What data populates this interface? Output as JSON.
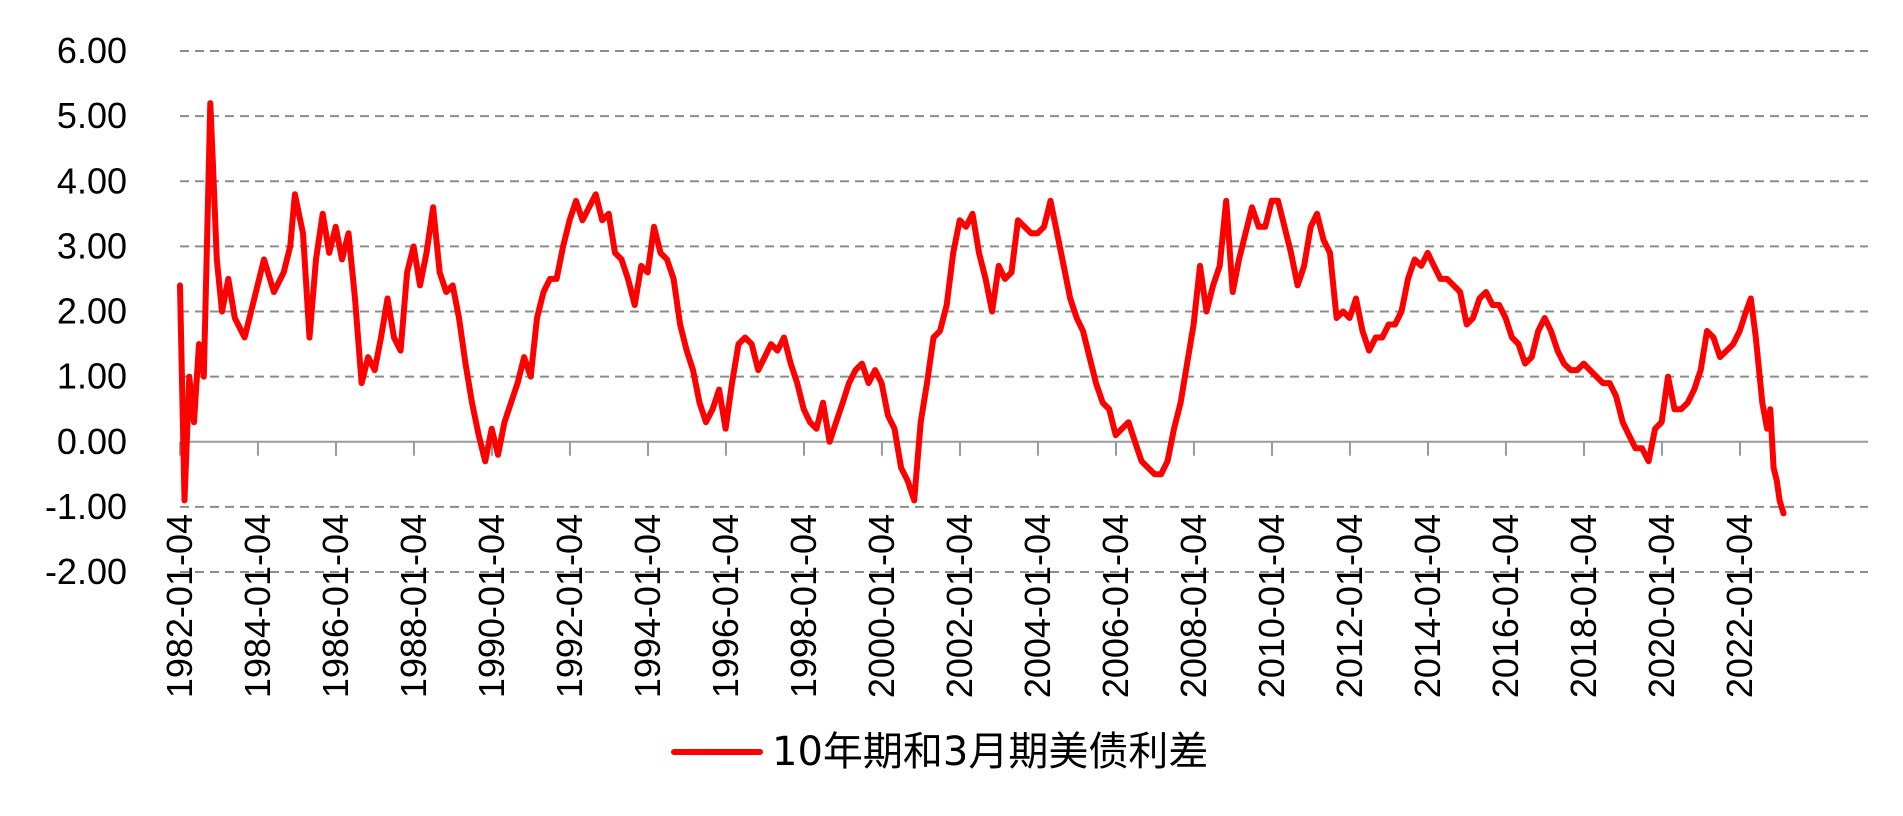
{
  "chart_data": {
    "type": "line",
    "title": "",
    "xlabel": "",
    "ylabel": "",
    "ylim": [
      -2,
      6
    ],
    "y_ticks": [
      "6.00",
      "5.00",
      "4.00",
      "3.00",
      "2.00",
      "1.00",
      "0.00",
      "-1.00",
      "-2.00"
    ],
    "x_ticks": [
      "1982-01-04",
      "1984-01-04",
      "1986-01-04",
      "1988-01-04",
      "1990-01-04",
      "1992-01-04",
      "1994-01-04",
      "1996-01-04",
      "1998-01-04",
      "2000-01-04",
      "2002-01-04",
      "2004-01-04",
      "2006-01-04",
      "2008-01-04",
      "2010-01-04",
      "2012-01-04",
      "2014-01-04",
      "2016-01-04",
      "2018-01-04",
      "2020-01-04",
      "2022-01-04"
    ],
    "grid": "horizontal dashed",
    "legend_position": "bottom-center",
    "series": [
      {
        "name": "10年期和3月期美债利差",
        "color": "#ff0000",
        "points": [
          [
            "1982-01-04",
            2.4
          ],
          [
            "1982-02-15",
            -0.9
          ],
          [
            "1982-04-01",
            1.0
          ],
          [
            "1982-05-15",
            0.3
          ],
          [
            "1982-07-01",
            1.5
          ],
          [
            "1982-08-15",
            1.0
          ],
          [
            "1982-09-20",
            3.5
          ],
          [
            "1982-10-15",
            5.2
          ],
          [
            "1982-11-10",
            4.2
          ],
          [
            "1982-12-15",
            2.8
          ],
          [
            "1983-02-01",
            2.0
          ],
          [
            "1983-04-01",
            2.5
          ],
          [
            "1983-06-01",
            1.9
          ],
          [
            "1983-09-01",
            1.6
          ],
          [
            "1983-12-01",
            2.2
          ],
          [
            "1984-03-01",
            2.8
          ],
          [
            "1984-06-01",
            2.3
          ],
          [
            "1984-09-01",
            2.6
          ],
          [
            "1984-11-01",
            3.0
          ],
          [
            "1984-12-15",
            3.8
          ],
          [
            "1985-03-01",
            3.2
          ],
          [
            "1985-05-01",
            1.6
          ],
          [
            "1985-07-01",
            2.8
          ],
          [
            "1985-09-01",
            3.5
          ],
          [
            "1985-11-01",
            2.9
          ],
          [
            "1986-01-01",
            3.3
          ],
          [
            "1986-03-01",
            2.8
          ],
          [
            "1986-05-01",
            3.2
          ],
          [
            "1986-07-01",
            2.2
          ],
          [
            "1986-09-01",
            0.9
          ],
          [
            "1986-11-01",
            1.3
          ],
          [
            "1987-01-01",
            1.1
          ],
          [
            "1987-03-01",
            1.6
          ],
          [
            "1987-05-01",
            2.2
          ],
          [
            "1987-07-01",
            1.6
          ],
          [
            "1987-09-01",
            1.4
          ],
          [
            "1987-11-01",
            2.6
          ],
          [
            "1988-01-01",
            3.0
          ],
          [
            "1988-03-01",
            2.4
          ],
          [
            "1988-05-01",
            2.9
          ],
          [
            "1988-07-01",
            3.6
          ],
          [
            "1988-09-01",
            2.6
          ],
          [
            "1988-11-01",
            2.3
          ],
          [
            "1989-01-01",
            2.4
          ],
          [
            "1989-03-01",
            1.9
          ],
          [
            "1989-05-01",
            1.2
          ],
          [
            "1989-07-01",
            0.6
          ],
          [
            "1989-09-01",
            0.1
          ],
          [
            "1989-11-01",
            -0.3
          ],
          [
            "1990-01-01",
            0.2
          ],
          [
            "1990-03-01",
            -0.2
          ],
          [
            "1990-05-01",
            0.3
          ],
          [
            "1990-07-01",
            0.6
          ],
          [
            "1990-09-01",
            0.9
          ],
          [
            "1990-11-01",
            1.3
          ],
          [
            "1991-01-01",
            1.0
          ],
          [
            "1991-03-01",
            1.9
          ],
          [
            "1991-05-01",
            2.3
          ],
          [
            "1991-07-01",
            2.5
          ],
          [
            "1991-09-01",
            2.5
          ],
          [
            "1991-11-01",
            3.0
          ],
          [
            "1992-01-01",
            3.4
          ],
          [
            "1992-03-01",
            3.7
          ],
          [
            "1992-05-01",
            3.4
          ],
          [
            "1992-07-01",
            3.6
          ],
          [
            "1992-09-01",
            3.8
          ],
          [
            "1992-11-01",
            3.4
          ],
          [
            "1993-01-01",
            3.5
          ],
          [
            "1993-03-01",
            2.9
          ],
          [
            "1993-05-01",
            2.8
          ],
          [
            "1993-07-01",
            2.5
          ],
          [
            "1993-09-01",
            2.1
          ],
          [
            "1993-11-01",
            2.7
          ],
          [
            "1994-01-01",
            2.6
          ],
          [
            "1994-03-01",
            3.3
          ],
          [
            "1994-05-01",
            2.9
          ],
          [
            "1994-07-01",
            2.8
          ],
          [
            "1994-09-01",
            2.5
          ],
          [
            "1994-11-01",
            1.8
          ],
          [
            "1995-01-01",
            1.4
          ],
          [
            "1995-03-01",
            1.1
          ],
          [
            "1995-05-01",
            0.6
          ],
          [
            "1995-07-01",
            0.3
          ],
          [
            "1995-09-01",
            0.5
          ],
          [
            "1995-11-01",
            0.8
          ],
          [
            "1996-01-01",
            0.2
          ],
          [
            "1996-03-01",
            0.9
          ],
          [
            "1996-05-01",
            1.5
          ],
          [
            "1996-07-01",
            1.6
          ],
          [
            "1996-09-01",
            1.5
          ],
          [
            "1996-11-01",
            1.1
          ],
          [
            "1997-01-01",
            1.3
          ],
          [
            "1997-03-01",
            1.5
          ],
          [
            "1997-05-01",
            1.4
          ],
          [
            "1997-07-01",
            1.6
          ],
          [
            "1997-09-01",
            1.2
          ],
          [
            "1997-11-01",
            0.9
          ],
          [
            "1998-01-01",
            0.5
          ],
          [
            "1998-03-01",
            0.3
          ],
          [
            "1998-05-01",
            0.2
          ],
          [
            "1998-07-01",
            0.6
          ],
          [
            "1998-09-01",
            0.0
          ],
          [
            "1998-11-01",
            0.3
          ],
          [
            "1999-01-01",
            0.6
          ],
          [
            "1999-03-01",
            0.9
          ],
          [
            "1999-05-01",
            1.1
          ],
          [
            "1999-07-01",
            1.2
          ],
          [
            "1999-09-01",
            0.9
          ],
          [
            "1999-11-01",
            1.1
          ],
          [
            "2000-01-01",
            0.9
          ],
          [
            "2000-03-01",
            0.4
          ],
          [
            "2000-05-01",
            0.2
          ],
          [
            "2000-07-01",
            -0.4
          ],
          [
            "2000-09-01",
            -0.6
          ],
          [
            "2000-11-01",
            -0.9
          ],
          [
            "2001-01-01",
            0.3
          ],
          [
            "2001-03-01",
            0.9
          ],
          [
            "2001-05-01",
            1.6
          ],
          [
            "2001-07-01",
            1.7
          ],
          [
            "2001-09-01",
            2.1
          ],
          [
            "2001-11-01",
            2.9
          ],
          [
            "2002-01-01",
            3.4
          ],
          [
            "2002-03-01",
            3.3
          ],
          [
            "2002-05-01",
            3.5
          ],
          [
            "2002-07-01",
            2.9
          ],
          [
            "2002-09-01",
            2.5
          ],
          [
            "2002-11-01",
            2.0
          ],
          [
            "2003-01-01",
            2.7
          ],
          [
            "2003-03-01",
            2.5
          ],
          [
            "2003-05-01",
            2.6
          ],
          [
            "2003-07-01",
            3.4
          ],
          [
            "2003-09-01",
            3.3
          ],
          [
            "2003-11-01",
            3.2
          ],
          [
            "2004-01-01",
            3.2
          ],
          [
            "2004-03-01",
            3.3
          ],
          [
            "2004-05-01",
            3.7
          ],
          [
            "2004-07-01",
            3.2
          ],
          [
            "2004-09-01",
            2.7
          ],
          [
            "2004-11-01",
            2.2
          ],
          [
            "2005-01-01",
            1.9
          ],
          [
            "2005-03-01",
            1.7
          ],
          [
            "2005-05-01",
            1.3
          ],
          [
            "2005-07-01",
            0.9
          ],
          [
            "2005-09-01",
            0.6
          ],
          [
            "2005-11-01",
            0.5
          ],
          [
            "2006-01-01",
            0.1
          ],
          [
            "2006-03-01",
            0.2
          ],
          [
            "2006-05-01",
            0.3
          ],
          [
            "2006-07-01",
            0.0
          ],
          [
            "2006-09-01",
            -0.3
          ],
          [
            "2006-11-01",
            -0.4
          ],
          [
            "2007-01-01",
            -0.5
          ],
          [
            "2007-03-01",
            -0.5
          ],
          [
            "2007-05-01",
            -0.3
          ],
          [
            "2007-07-01",
            0.2
          ],
          [
            "2007-09-01",
            0.6
          ],
          [
            "2007-11-01",
            1.2
          ],
          [
            "2008-01-01",
            1.8
          ],
          [
            "2008-03-01",
            2.7
          ],
          [
            "2008-05-01",
            2.0
          ],
          [
            "2008-07-01",
            2.4
          ],
          [
            "2008-09-01",
            2.7
          ],
          [
            "2008-11-01",
            3.7
          ],
          [
            "2009-01-01",
            2.3
          ],
          [
            "2009-03-01",
            2.8
          ],
          [
            "2009-05-01",
            3.2
          ],
          [
            "2009-07-01",
            3.6
          ],
          [
            "2009-09-01",
            3.3
          ],
          [
            "2009-11-01",
            3.3
          ],
          [
            "2010-01-01",
            3.7
          ],
          [
            "2010-03-01",
            3.7
          ],
          [
            "2010-05-01",
            3.3
          ],
          [
            "2010-07-01",
            2.9
          ],
          [
            "2010-09-01",
            2.4
          ],
          [
            "2010-11-01",
            2.7
          ],
          [
            "2011-01-01",
            3.3
          ],
          [
            "2011-03-01",
            3.5
          ],
          [
            "2011-05-01",
            3.1
          ],
          [
            "2011-07-01",
            2.9
          ],
          [
            "2011-09-01",
            1.9
          ],
          [
            "2011-11-01",
            2.0
          ],
          [
            "2012-01-01",
            1.9
          ],
          [
            "2012-03-01",
            2.2
          ],
          [
            "2012-05-01",
            1.7
          ],
          [
            "2012-07-01",
            1.4
          ],
          [
            "2012-09-01",
            1.6
          ],
          [
            "2012-11-01",
            1.6
          ],
          [
            "2013-01-01",
            1.8
          ],
          [
            "2013-03-01",
            1.8
          ],
          [
            "2013-05-01",
            2.0
          ],
          [
            "2013-07-01",
            2.5
          ],
          [
            "2013-09-01",
            2.8
          ],
          [
            "2013-11-01",
            2.7
          ],
          [
            "2014-01-01",
            2.9
          ],
          [
            "2014-03-01",
            2.7
          ],
          [
            "2014-05-01",
            2.5
          ],
          [
            "2014-07-01",
            2.5
          ],
          [
            "2014-09-01",
            2.4
          ],
          [
            "2014-11-01",
            2.3
          ],
          [
            "2015-01-01",
            1.8
          ],
          [
            "2015-03-01",
            1.9
          ],
          [
            "2015-05-01",
            2.2
          ],
          [
            "2015-07-01",
            2.3
          ],
          [
            "2015-09-01",
            2.1
          ],
          [
            "2015-11-01",
            2.1
          ],
          [
            "2016-01-01",
            1.9
          ],
          [
            "2016-03-01",
            1.6
          ],
          [
            "2016-05-01",
            1.5
          ],
          [
            "2016-07-01",
            1.2
          ],
          [
            "2016-09-01",
            1.3
          ],
          [
            "2016-11-01",
            1.7
          ],
          [
            "2017-01-01",
            1.9
          ],
          [
            "2017-03-01",
            1.7
          ],
          [
            "2017-05-01",
            1.4
          ],
          [
            "2017-07-01",
            1.2
          ],
          [
            "2017-09-01",
            1.1
          ],
          [
            "2017-11-01",
            1.1
          ],
          [
            "2018-01-01",
            1.2
          ],
          [
            "2018-03-01",
            1.1
          ],
          [
            "2018-05-01",
            1.0
          ],
          [
            "2018-07-01",
            0.9
          ],
          [
            "2018-09-01",
            0.9
          ],
          [
            "2018-11-01",
            0.7
          ],
          [
            "2019-01-01",
            0.3
          ],
          [
            "2019-03-01",
            0.1
          ],
          [
            "2019-05-01",
            -0.1
          ],
          [
            "2019-07-01",
            -0.1
          ],
          [
            "2019-09-01",
            -0.3
          ],
          [
            "2019-11-01",
            0.2
          ],
          [
            "2020-01-01",
            0.3
          ],
          [
            "2020-03-01",
            1.0
          ],
          [
            "2020-05-01",
            0.5
          ],
          [
            "2020-07-01",
            0.5
          ],
          [
            "2020-09-01",
            0.6
          ],
          [
            "2020-11-01",
            0.8
          ],
          [
            "2021-01-01",
            1.1
          ],
          [
            "2021-03-01",
            1.7
          ],
          [
            "2021-05-01",
            1.6
          ],
          [
            "2021-07-01",
            1.3
          ],
          [
            "2021-09-01",
            1.4
          ],
          [
            "2021-11-01",
            1.5
          ],
          [
            "2022-01-01",
            1.7
          ],
          [
            "2022-03-01",
            2.0
          ],
          [
            "2022-04-15",
            2.2
          ],
          [
            "2022-06-01",
            1.6
          ],
          [
            "2022-08-01",
            0.6
          ],
          [
            "2022-09-15",
            0.2
          ],
          [
            "2022-10-15",
            0.5
          ],
          [
            "2022-11-15",
            -0.4
          ],
          [
            "2022-12-15",
            -0.6
          ],
          [
            "2023-01-10",
            -0.9
          ],
          [
            "2023-02-15",
            -1.1
          ]
        ]
      }
    ]
  }
}
